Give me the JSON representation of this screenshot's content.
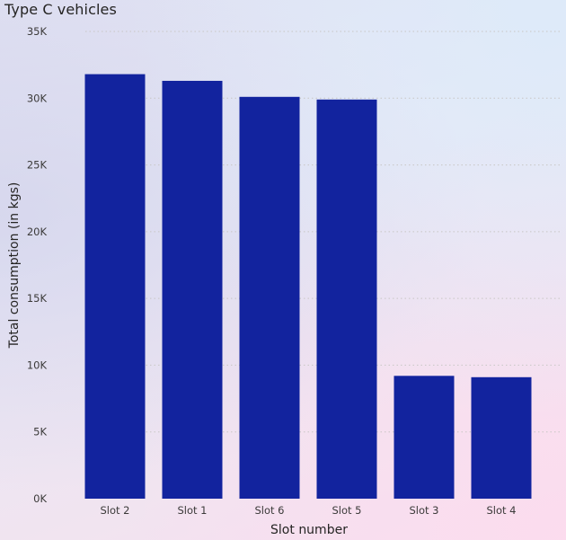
{
  "chart_data": {
    "type": "bar",
    "title": "Type C vehicles",
    "xlabel": "Slot number",
    "ylabel": "Total consumption (in kgs)",
    "categories": [
      "Slot 2",
      "Slot 1",
      "Slot 6",
      "Slot 5",
      "Slot 3",
      "Slot 4"
    ],
    "values": [
      31800,
      31300,
      30100,
      29900,
      9200,
      9100
    ],
    "ylim": [
      0,
      35000
    ],
    "yticks": [
      {
        "value": 0,
        "label": "0K"
      },
      {
        "value": 5000,
        "label": "5K"
      },
      {
        "value": 10000,
        "label": "10K"
      },
      {
        "value": 15000,
        "label": "15K"
      },
      {
        "value": 20000,
        "label": "20K"
      },
      {
        "value": 25000,
        "label": "25K"
      },
      {
        "value": 30000,
        "label": "30K"
      },
      {
        "value": 35000,
        "label": "35K"
      }
    ],
    "grid": true,
    "legend": "none",
    "bar_color": "#12239e",
    "gridline_color": "#c8c6c4"
  }
}
